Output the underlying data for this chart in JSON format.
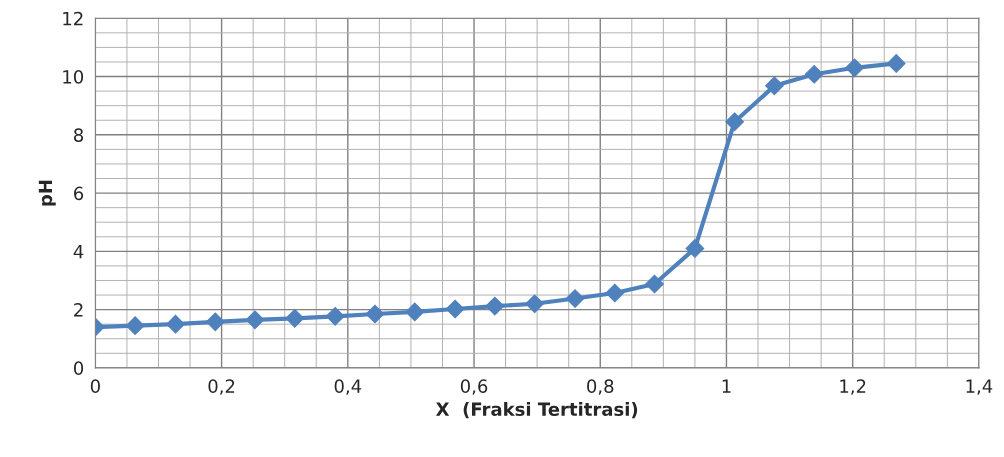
{
  "chart_data": {
    "type": "line",
    "xlabel": "X  (Fraksi Tertitrasi)",
    "ylabel": "pH",
    "x": [
      0,
      0.063,
      0.127,
      0.19,
      0.253,
      0.316,
      0.38,
      0.443,
      0.506,
      0.57,
      0.633,
      0.696,
      0.76,
      0.823,
      0.886,
      0.95,
      1.013,
      1.076,
      1.139,
      1.203,
      1.269
    ],
    "series": [
      {
        "color": "#4f81bd",
        "values": [
          1.4,
          1.45,
          1.5,
          1.58,
          1.65,
          1.7,
          1.77,
          1.85,
          1.92,
          2.02,
          2.12,
          2.2,
          2.38,
          2.57,
          2.88,
          4.1,
          8.45,
          9.68,
          10.08,
          10.3,
          10.45
        ]
      }
    ],
    "xlim": [
      0,
      1.4
    ],
    "xticks": [
      {
        "value": 0,
        "label": "0"
      },
      {
        "value": 0.2,
        "label": "0,2"
      },
      {
        "value": 0.4,
        "label": "0,4"
      },
      {
        "value": 0.6,
        "label": "0,6"
      },
      {
        "value": 0.8,
        "label": "0,8"
      },
      {
        "value": 1,
        "label": "1"
      },
      {
        "value": 1.2,
        "label": "1,2"
      },
      {
        "value": 1.4,
        "label": "1,4"
      }
    ],
    "ylim": [
      0,
      12
    ],
    "yticks": [
      0,
      2,
      4,
      6,
      8,
      10,
      12
    ],
    "grid": true,
    "marker": "diamond",
    "line_style": "solid",
    "legend": false
  }
}
